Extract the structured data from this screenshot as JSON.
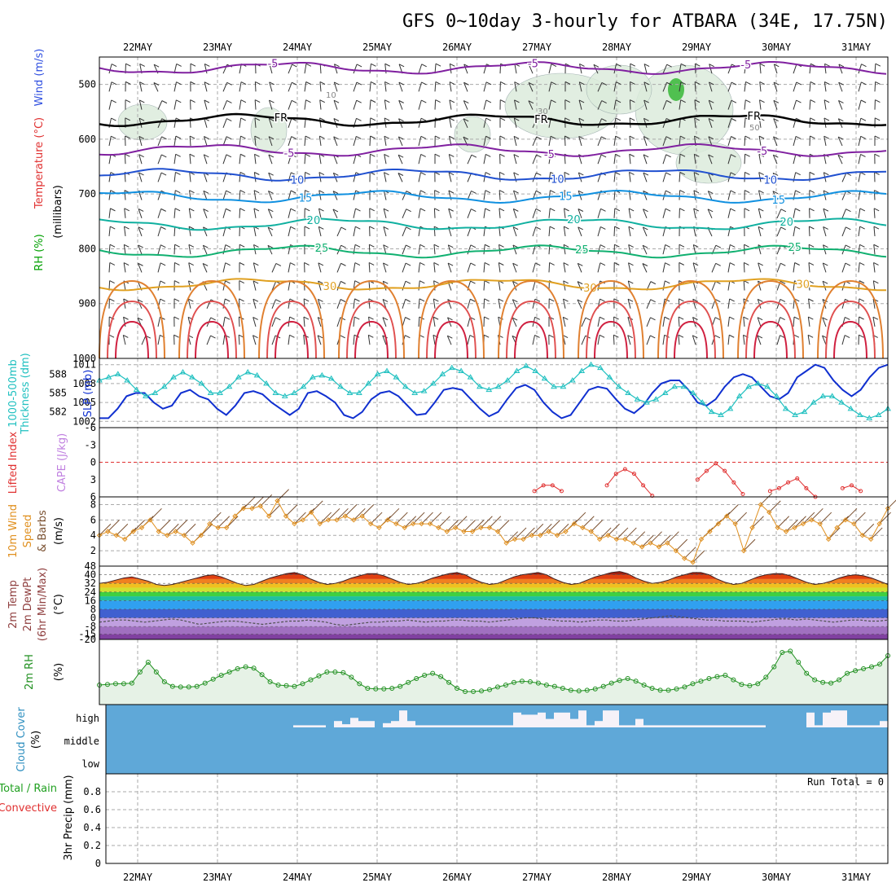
{
  "title": "GFS 0~10day 3-hourly for ATBARA (34E, 17.75N)",
  "dates": [
    "22MAY",
    "23MAY",
    "24MAY",
    "25MAY",
    "26MAY",
    "27MAY",
    "28MAY",
    "29MAY",
    "30MAY",
    "31MAY"
  ],
  "chart_data": [
    {
      "panel": "upper-air",
      "type": "line",
      "ylabel": [
        "RH (%)",
        "Temperature (°C)",
        "Wind (m/s)",
        "(millibars)"
      ],
      "ylabel_colors": [
        "#00a000",
        "#e03030",
        "#3050e0",
        "#000000"
      ],
      "yticks": [
        500,
        600,
        700,
        800,
        900,
        1000
      ],
      "ylim": [
        1000,
        450
      ],
      "grid": true,
      "isotherms": [
        {
          "label": "-5",
          "color": "#8020a0",
          "p": 470
        },
        {
          "label": "FR",
          "color": "#000000",
          "p": 565
        },
        {
          "label": "-5",
          "color": "#8020a0",
          "p": 620
        },
        {
          "label": "10",
          "color": "#2050d0",
          "p": 665
        },
        {
          "label": "15",
          "color": "#1090e0",
          "p": 705
        },
        {
          "label": "20",
          "color": "#10b0a0",
          "p": 755
        },
        {
          "label": "25",
          "color": "#10b070",
          "p": 805
        },
        {
          "label": "30",
          "color": "#e0a020",
          "p": 865
        }
      ],
      "rh_labels": [
        "10",
        "30",
        "50"
      ]
    },
    {
      "panel": "slp-thickness",
      "type": "line",
      "ylabel": [
        "1000-500mb",
        "Thickness (dm)",
        "SLP (mb)"
      ],
      "left_ticks": [
        "588",
        "585",
        "582"
      ],
      "right_ticks": [
        "1011",
        "1008",
        "1005",
        "1002"
      ],
      "ylim": [
        1001,
        1012
      ],
      "series": [
        {
          "name": "SLP (mb)",
          "color": "#1030d0",
          "values": [
            1002.5,
            1002.5,
            1004,
            1006,
            1006.5,
            1006.5,
            1005,
            1004,
            1004.5,
            1006.5,
            1007,
            1006,
            1005.5,
            1004,
            1003,
            1004.5,
            1006.5,
            1006.8,
            1006.3,
            1005,
            1004,
            1003,
            1004,
            1006.5,
            1006.8,
            1006,
            1005,
            1003,
            1002.5,
            1003.5,
            1005.5,
            1006.5,
            1006.8,
            1006,
            1004.5,
            1003,
            1003.2,
            1005,
            1007,
            1007.3,
            1007,
            1005.5,
            1004,
            1002.8,
            1003.5,
            1005.5,
            1007.3,
            1007.8,
            1007,
            1005,
            1003.5,
            1002.5,
            1003,
            1005,
            1007,
            1007.5,
            1007.2,
            1005.5,
            1004,
            1003.3,
            1004.5,
            1006.5,
            1008,
            1008.5,
            1008.5,
            1007,
            1005,
            1004.5,
            1005.5,
            1007.5,
            1009,
            1009.5,
            1009,
            1007.5,
            1006,
            1005.5,
            1006.5,
            1009,
            1010,
            1011,
            1010.5,
            1008.5,
            1007,
            1006,
            1007,
            1009,
            1010.5,
            1011
          ]
        },
        {
          "name": "Thickness (dm)",
          "color": "#20c0c0",
          "values": [
            1008.5,
            1009,
            1009.5,
            1008.5,
            1007,
            1006,
            1006.5,
            1007.5,
            1009,
            1009.8,
            1009,
            1008,
            1006.5,
            1006.5,
            1007.5,
            1009,
            1009.8,
            1009.3,
            1008,
            1006.5,
            1006,
            1006.5,
            1007.5,
            1009,
            1009.3,
            1008.8,
            1007.5,
            1006.5,
            1006.5,
            1008,
            1009.5,
            1010,
            1009,
            1007.5,
            1006.5,
            1006.8,
            1008,
            1009.5,
            1010.5,
            1010,
            1009,
            1007.5,
            1007,
            1007.5,
            1008.5,
            1010,
            1010.8,
            1010,
            1008.8,
            1007.5,
            1007.5,
            1008.5,
            1010,
            1011,
            1010.5,
            1009,
            1007.5,
            1006.5,
            1005.5,
            1005,
            1005.5,
            1006.5,
            1007.5,
            1007.5,
            1006.5,
            1005,
            1003.5,
            1003,
            1004,
            1006,
            1007.5,
            1008,
            1007.5,
            1006,
            1004,
            1003,
            1003.5,
            1005,
            1006,
            1006,
            1005,
            1004,
            1003,
            1002.5,
            1003,
            1004
          ]
        }
      ]
    },
    {
      "panel": "cape-li",
      "type": "line",
      "ylabel": [
        "Lifted Index",
        "CAPE (J/kg)"
      ],
      "yticks": [
        "-6",
        "-3",
        "0",
        "3",
        "6"
      ],
      "ylim": [
        6,
        -6
      ],
      "series": [
        {
          "name": "Lifted Index",
          "color": "#e03030",
          "segments": [
            [
              [
                48,
                5
              ],
              [
                49,
                4
              ],
              [
                50,
                4
              ],
              [
                51,
                5
              ]
            ],
            [
              [
                56,
                4
              ],
              [
                57,
                2
              ],
              [
                58,
                1.2
              ],
              [
                59,
                2
              ],
              [
                60,
                4
              ],
              [
                61,
                5.8
              ]
            ],
            [
              [
                66,
                3
              ],
              [
                67,
                1.5
              ],
              [
                68,
                0.2
              ],
              [
                69,
                1.5
              ],
              [
                70,
                3.5
              ],
              [
                71,
                5.5
              ]
            ],
            [
              [
                74,
                5
              ],
              [
                75,
                4.5
              ],
              [
                76,
                3.5
              ],
              [
                77,
                2.8
              ],
              [
                78,
                4.5
              ],
              [
                79,
                6
              ]
            ],
            [
              [
                82,
                4.5
              ],
              [
                83,
                4
              ],
              [
                84,
                5
              ]
            ]
          ]
        }
      ]
    },
    {
      "panel": "wind10m",
      "type": "line",
      "ylabel": [
        "10m Wind",
        "Speed",
        "& Barbs",
        "(m/s)"
      ],
      "yticks": [
        "2",
        "4",
        "6",
        "8"
      ],
      "ylim": [
        0,
        9
      ],
      "series": [
        {
          "name": "10m Wind Speed",
          "color": "#e09020",
          "values": [
            4,
            4.5,
            4,
            3.5,
            4.5,
            5,
            6,
            4.5,
            4,
            4.5,
            4,
            3,
            4,
            5.5,
            5,
            5,
            6.5,
            7.5,
            7.5,
            7.8,
            6.5,
            8.5,
            6.5,
            5.5,
            6,
            7,
            5.5,
            6,
            6,
            6.5,
            6,
            6.5,
            5.5,
            5,
            6,
            5.5,
            5,
            5.5,
            5.5,
            5.5,
            5,
            4.5,
            5,
            4.5,
            4.5,
            5,
            5,
            4.5,
            3,
            3.5,
            3.5,
            4,
            4,
            4.5,
            4,
            4.5,
            5.5,
            5,
            4.5,
            3.5,
            4,
            3.5,
            3.5,
            3,
            2.5,
            3,
            2.5,
            3,
            2,
            1,
            0.5,
            3.5,
            4.5,
            5.5,
            6.5,
            5.5,
            2,
            5,
            8,
            7,
            5,
            4.5,
            5,
            5.5,
            6,
            5.5,
            3.5,
            5,
            6,
            5.5,
            4,
            3.5,
            5.5,
            7.5
          ]
        }
      ]
    },
    {
      "panel": "temp2m",
      "type": "area",
      "ylabel": [
        "2m Temp",
        "2m DewPt",
        "(6hr Min/Max)",
        "(°C)"
      ],
      "yticks": [
        "48",
        "40",
        "32",
        "24",
        "16",
        "8",
        "0",
        "-8",
        "-15",
        "-20"
      ],
      "ylim": [
        -20,
        48
      ],
      "series": [
        {
          "name": "2m Temp",
          "values": [
            32,
            33,
            35,
            37,
            38,
            36,
            34,
            31,
            30,
            31,
            33,
            35,
            37,
            39,
            40,
            38,
            35,
            32,
            30,
            31,
            34,
            37,
            39,
            41,
            42,
            40,
            36,
            33,
            31,
            32,
            34,
            37,
            39,
            41,
            41,
            39,
            36,
            33,
            31,
            32,
            34,
            37,
            39,
            41,
            42,
            40,
            36,
            33,
            31,
            32,
            35,
            38,
            40,
            41,
            42,
            40,
            36,
            33,
            31,
            32,
            35,
            38,
            40,
            42,
            43,
            41,
            37,
            34,
            32,
            33,
            35,
            38,
            40,
            42,
            42,
            40,
            36,
            33,
            31,
            32,
            35,
            38,
            40,
            41,
            41,
            39,
            36,
            33,
            31,
            32,
            34,
            37,
            39,
            40,
            39,
            37,
            34,
            31
          ]
        },
        {
          "name": "2m DewPt",
          "color": "#505050",
          "values": [
            -4,
            -3,
            -2,
            -2,
            -3,
            -4,
            -3,
            -2,
            -1,
            -2,
            -4,
            -6,
            -5,
            -4,
            -3,
            -3,
            -4,
            -5,
            -6,
            -5,
            -4,
            -3,
            -3,
            -2,
            -3,
            -4,
            -6,
            -7,
            -6,
            -5,
            -4,
            -4,
            -3,
            -3,
            -2,
            -3,
            -4,
            -3,
            -3,
            -2,
            -2,
            -3,
            -3,
            -4,
            -3,
            -2,
            -1,
            0,
            0,
            -1,
            -2,
            -3,
            -3,
            -4,
            -3,
            -2,
            -2,
            -3,
            -3,
            -2,
            -1,
            0,
            1,
            2,
            1,
            0,
            -1,
            -2,
            -2,
            -3,
            -3,
            -3,
            -4,
            -3,
            -2,
            -1,
            -1,
            -2,
            -1,
            -2,
            -3,
            -4,
            -3,
            -2,
            -2,
            -3,
            -3,
            -2
          ]
        }
      ]
    },
    {
      "panel": "rh2m",
      "type": "line",
      "ylabel": [
        "2m RH",
        "(%)"
      ],
      "ylim": [
        0,
        100
      ],
      "series": [
        {
          "name": "2m RH",
          "color": "#209020",
          "values": [
            30,
            31,
            32,
            32,
            33,
            50,
            65,
            50,
            35,
            28,
            27,
            27,
            28,
            33,
            39,
            45,
            50,
            55,
            58,
            56,
            46,
            35,
            30,
            29,
            28,
            32,
            38,
            44,
            50,
            50,
            49,
            42,
            32,
            25,
            24,
            24,
            25,
            28,
            34,
            40,
            45,
            48,
            43,
            34,
            25,
            20,
            20,
            21,
            23,
            27,
            30,
            34,
            36,
            35,
            33,
            30,
            28,
            25,
            22,
            21,
            22,
            24,
            28,
            33,
            37,
            40,
            36,
            30,
            25,
            22,
            22,
            24,
            27,
            32,
            36,
            40,
            43,
            45,
            38,
            31,
            29,
            32,
            42,
            58,
            80,
            82,
            65,
            48,
            38,
            34,
            33,
            38,
            48,
            52,
            55,
            58,
            62,
            75
          ]
        }
      ]
    },
    {
      "panel": "cloud",
      "type": "bar",
      "ylabel": [
        "Cloud Cover",
        "(%)"
      ],
      "yticks": [
        "high",
        "middle",
        "low"
      ],
      "series": [
        {
          "name": "high",
          "color": "#f6f2f8",
          "values": [
            0,
            0,
            0,
            0,
            0,
            0,
            0,
            0,
            0,
            0,
            0,
            0,
            0,
            0,
            0,
            0,
            0,
            0,
            0,
            0,
            0,
            0,
            0,
            0.1,
            0.1,
            0.1,
            0.1,
            0,
            0.3,
            0.15,
            0.45,
            0.3,
            0.3,
            0,
            0.2,
            0.3,
            0.8,
            0.3,
            0.1,
            0.1,
            0.1,
            0.1,
            0.1,
            0.1,
            0.1,
            0.1,
            0.1,
            0.1,
            0.1,
            0.1,
            0.7,
            0.6,
            0.6,
            0.7,
            0.4,
            0.7,
            0.7,
            0.4,
            0.8,
            0.1,
            0.3,
            0.8,
            0.8,
            0.1,
            0.1,
            0.4,
            0.1,
            0.1,
            0.1,
            0.1,
            0.1,
            0.1,
            0.1,
            0.1,
            0.1,
            0.1,
            0.1,
            0.1,
            0.1,
            0.1,
            0.1,
            0,
            0,
            0,
            0,
            0,
            0.7,
            0.1,
            0.7,
            0.8,
            0.8,
            0.1,
            0.1,
            0.1,
            0.1,
            0.3
          ]
        }
      ]
    },
    {
      "panel": "precip",
      "type": "bar",
      "ylabel": [
        "Total / Rain",
        "Convective",
        "3hr Precip (mm)"
      ],
      "ylabel_colors": [
        "#20a020",
        "#e03030",
        "#000000"
      ],
      "yticks": [
        "0.8",
        "0.6",
        "0.4",
        "0.2",
        "0"
      ],
      "ylim": [
        0,
        1
      ],
      "annotation": "Run Total = 0",
      "series": []
    }
  ]
}
